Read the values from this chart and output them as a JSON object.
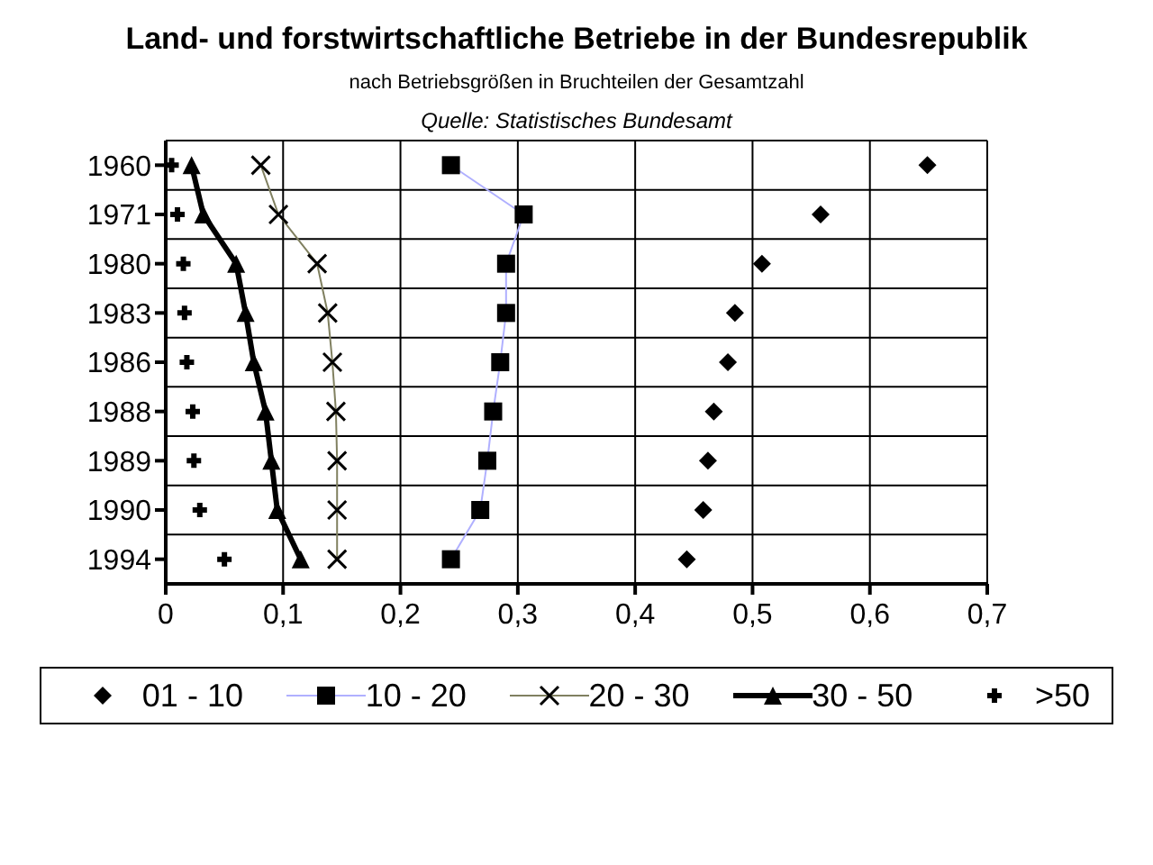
{
  "chart_data": {
    "type": "line",
    "orientation": "horizontal",
    "title": "Land- und forstwirtschaftliche Betriebe in der Bundesrepublik",
    "subtitle": "nach Betriebsgrößen in Bruchteilen der Gesamtzahl",
    "annotations": [
      "Quelle: Statistisches Bundesamt"
    ],
    "categories": [
      "1960",
      "1971",
      "1980",
      "1983",
      "1986",
      "1988",
      "1989",
      "1990",
      "1994"
    ],
    "xlim": [
      0,
      0.7
    ],
    "xticks": [
      0,
      {
        "value": 0.1,
        "label": "0,1"
      },
      {
        "value": 0.2,
        "label": "0,2"
      },
      {
        "value": 0.3,
        "label": "0,3"
      },
      {
        "value": 0.4,
        "label": "0,4"
      },
      {
        "value": 0.5,
        "label": "0,5"
      },
      {
        "value": 0.6,
        "label": "0,6"
      },
      {
        "value": 0.7,
        "label": "0,7"
      }
    ],
    "grid": true,
    "legend": "bottom",
    "series": [
      {
        "name": "01 - 10",
        "type": "scatter",
        "marker": "diamond",
        "color": "#000000",
        "values": [
          0.649,
          0.558,
          0.508,
          0.485,
          0.479,
          0.467,
          0.462,
          0.458,
          0.444
        ]
      },
      {
        "name": "10 - 20",
        "marker": "square",
        "color": "#b0b0ff",
        "values": [
          0.243,
          0.305,
          0.29,
          0.29,
          0.285,
          0.279,
          0.274,
          0.268,
          0.243
        ]
      },
      {
        "name": "20 - 30",
        "marker": "cross",
        "color": "#808060",
        "values": [
          0.081,
          0.096,
          0.129,
          0.138,
          0.142,
          0.145,
          0.146,
          0.146,
          0.146
        ]
      },
      {
        "name": "30 - 50",
        "marker": "triangle",
        "color": "#000000",
        "values": [
          0.022,
          0.032,
          0.06,
          0.068,
          0.075,
          0.085,
          0.09,
          0.095,
          0.115
        ]
      },
      {
        "name": ">50",
        "type": "scatter",
        "marker": "plus",
        "color": "#000000",
        "values": [
          0.005,
          0.01,
          0.015,
          0.016,
          0.018,
          0.023,
          0.024,
          0.029,
          0.05
        ]
      }
    ]
  }
}
